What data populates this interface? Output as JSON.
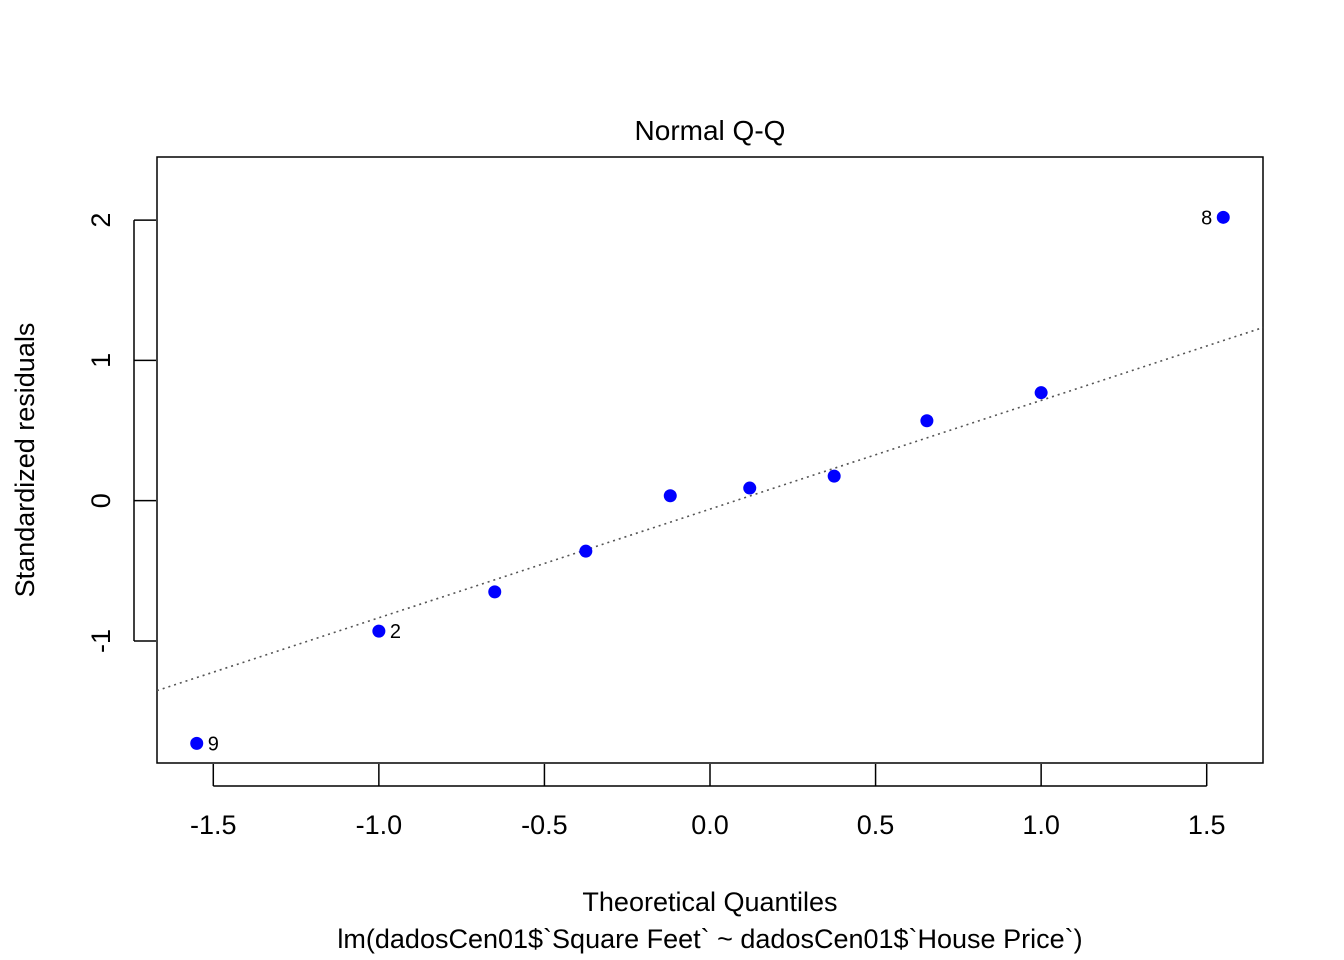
{
  "chart_data": {
    "type": "scatter",
    "title": "Normal Q-Q",
    "xlabel": "Theoretical Quantiles",
    "subtitle": "lm(dadosCen01$`Square Feet` ~ dadosCen01$`House Price`)",
    "ylabel": "Standardized residuals",
    "xlim": [
      -1.67,
      1.67
    ],
    "ylim": [
      -1.87,
      2.45
    ],
    "xticks": [
      -1.5,
      -1.0,
      -0.5,
      0.0,
      0.5,
      1.0,
      1.5
    ],
    "xtick_labels": [
      "-1.5",
      "-1.0",
      "-0.5",
      "0.0",
      "0.5",
      "1.0",
      "1.5"
    ],
    "yticks": [
      -1,
      0,
      1,
      2
    ],
    "ytick_labels": [
      "-1",
      "0",
      "1",
      "2"
    ],
    "grid": false,
    "point_color": "#0000ff",
    "points": [
      {
        "x": -1.55,
        "y": -1.73,
        "label": "9"
      },
      {
        "x": -1.0,
        "y": -0.93,
        "label": "2"
      },
      {
        "x": -0.65,
        "y": -0.65,
        "label": ""
      },
      {
        "x": -0.375,
        "y": -0.36,
        "label": ""
      },
      {
        "x": -0.12,
        "y": 0.035,
        "label": ""
      },
      {
        "x": 0.12,
        "y": 0.09,
        "label": ""
      },
      {
        "x": 0.375,
        "y": 0.175,
        "label": ""
      },
      {
        "x": 0.655,
        "y": 0.57,
        "label": ""
      },
      {
        "x": 1.0,
        "y": 0.77,
        "label": ""
      },
      {
        "x": 1.55,
        "y": 2.02,
        "label": "8"
      }
    ],
    "reference_line": {
      "style": "dotted",
      "color": "#555555",
      "intercept": -0.06,
      "slope": 0.775
    }
  }
}
